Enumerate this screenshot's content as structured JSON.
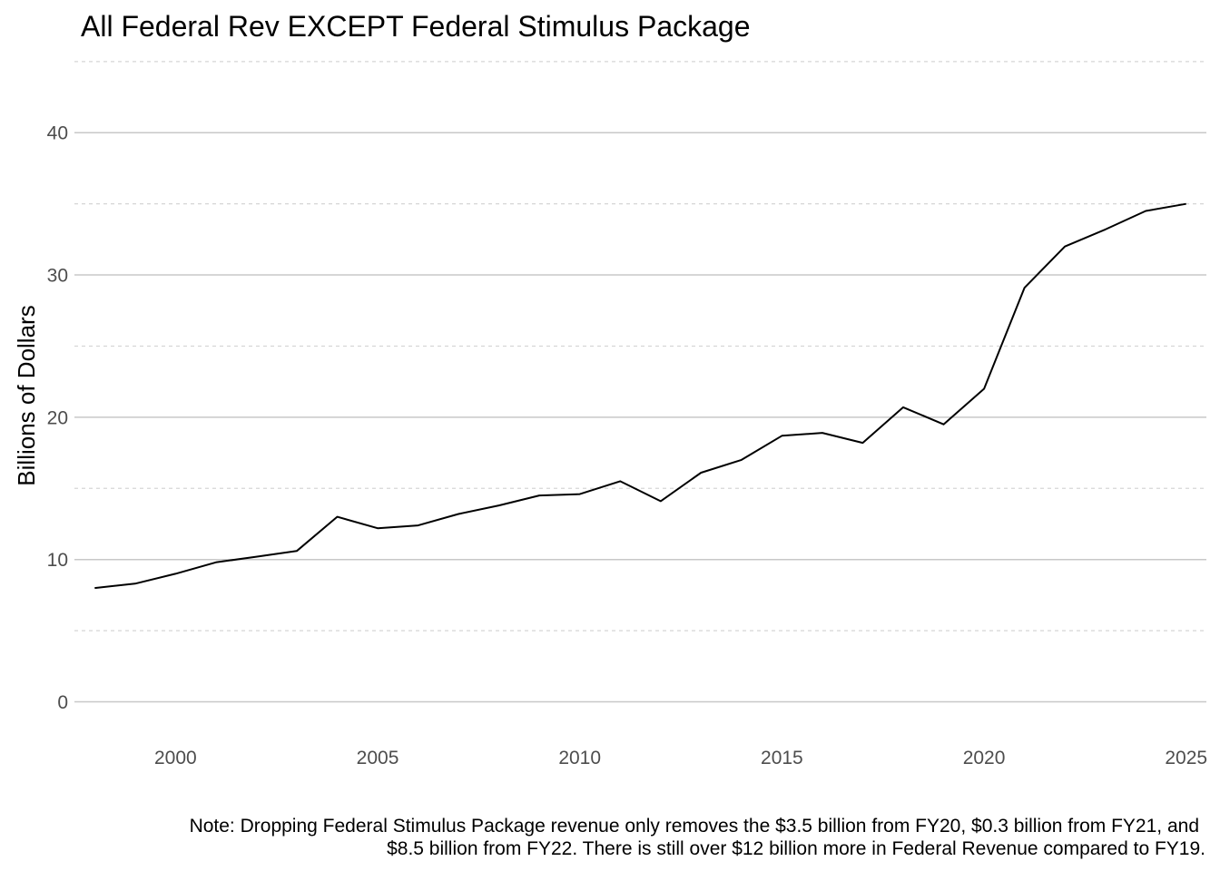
{
  "chart_data": {
    "type": "line",
    "title": "All Federal Rev EXCEPT Federal Stimulus Package",
    "xlabel": "",
    "ylabel": "Billions of Dollars",
    "x": [
      1998,
      1999,
      2000,
      2001,
      2002,
      2003,
      2004,
      2005,
      2006,
      2007,
      2008,
      2009,
      2010,
      2011,
      2012,
      2013,
      2014,
      2015,
      2016,
      2017,
      2018,
      2019,
      2020,
      2021,
      2022,
      2023,
      2024,
      2025
    ],
    "series": [
      {
        "values": [
          8.0,
          8.3,
          9.0,
          9.8,
          10.2,
          10.6,
          13.0,
          12.2,
          12.4,
          13.2,
          13.8,
          14.5,
          14.6,
          15.5,
          14.1,
          16.1,
          17.0,
          18.7,
          18.9,
          18.2,
          20.7,
          19.5,
          22.0,
          29.1,
          32.0,
          33.2,
          34.5,
          35.0
        ],
        "color": "#000000"
      }
    ],
    "xlim": [
      1997.5,
      2025.5
    ],
    "ylim": [
      -2.2,
      45.5
    ],
    "x_ticks": [
      2000,
      2005,
      2010,
      2015,
      2020,
      2025
    ],
    "x_tick_labels": [
      "2000",
      "2005",
      "2010",
      "2015",
      "2020",
      "2025"
    ],
    "y_ticks": [
      0,
      10,
      20,
      30,
      40
    ],
    "y_tick_labels": [
      "0",
      "10",
      "20",
      "30",
      "40"
    ],
    "y_minor_ticks": [
      5,
      15,
      25,
      35,
      45
    ],
    "grid": true,
    "legend": "none"
  },
  "note": {
    "line1": "Note: Dropping Federal Stimulus Package revenue only removes the $3.5 billion from FY20, $0.3 billion from FY21, and",
    "line2": "$8.5 billion from FY22. There is still over $12 billion more in Federal Revenue compared to FY19."
  },
  "colors": {
    "background": "#ffffff",
    "grid_major": "#c8c8c8",
    "grid_minor": "#d6d6d6",
    "tick_text": "#4d4d4d",
    "line": "#000000"
  }
}
